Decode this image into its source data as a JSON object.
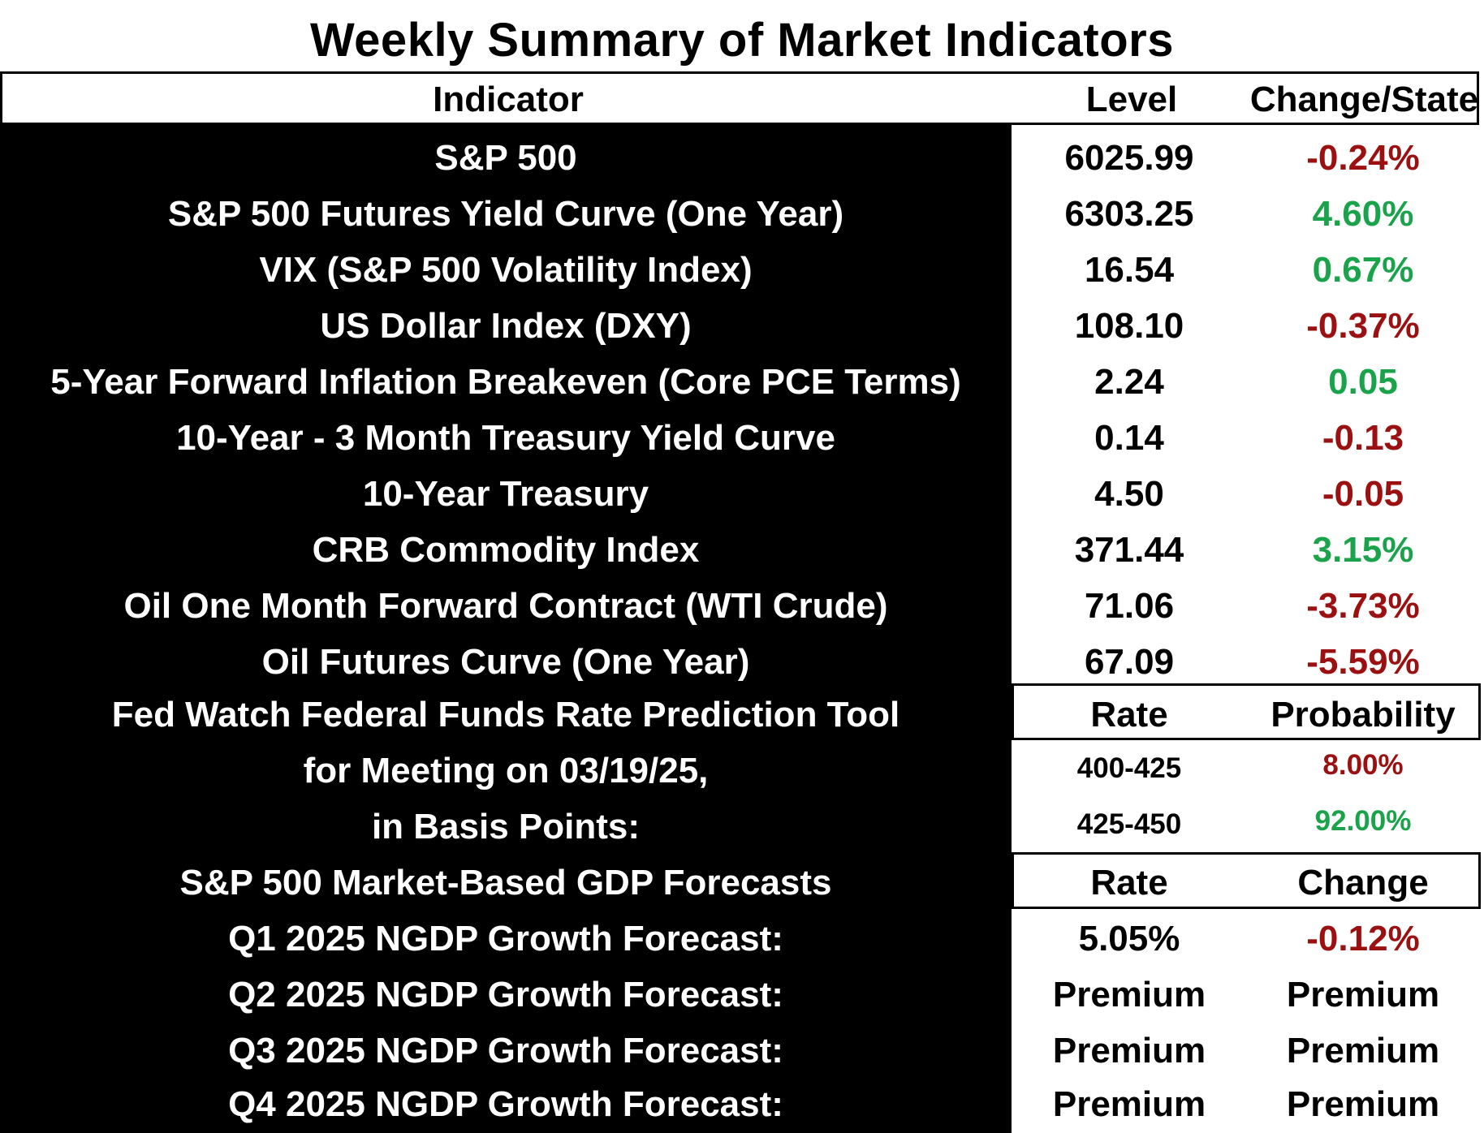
{
  "title": "Weekly Summary of Market Indicators",
  "header": {
    "indicator": "Indicator",
    "level": "Level",
    "change": "Change/State"
  },
  "rows": [
    {
      "indicator": "S&P 500",
      "level": "6025.99",
      "change": "-0.24%",
      "color": "#9b1111"
    },
    {
      "indicator": "S&P 500 Futures Yield Curve (One Year)",
      "level": "6303.25",
      "change": "4.60%",
      "color": "#1aa34a"
    },
    {
      "indicator": "VIX (S&P 500 Volatility Index)",
      "level": "16.54",
      "change": "0.67%",
      "color": "#1aa34a"
    },
    {
      "indicator": "US Dollar Index (DXY)",
      "level": "108.10",
      "change": "-0.37%",
      "color": "#9b1111"
    },
    {
      "indicator": "5-Year Forward Inflation Breakeven (Core PCE Terms)",
      "level": "2.24",
      "change": "0.05",
      "color": "#1aa34a"
    },
    {
      "indicator": "10-Year - 3 Month Treasury Yield Curve",
      "level": "0.14",
      "change": "-0.13",
      "color": "#9b1111"
    },
    {
      "indicator": "10-Year Treasury",
      "level": "4.50",
      "change": "-0.05",
      "color": "#9b1111"
    },
    {
      "indicator": "CRB Commodity Index",
      "level": "371.44",
      "change": "3.15%",
      "color": "#1aa34a"
    },
    {
      "indicator": "Oil One Month Forward Contract (WTI Crude)",
      "level": "71.06",
      "change": "-3.73%",
      "color": "#9b1111"
    },
    {
      "indicator": "Oil Futures Curve (One Year)",
      "level": "67.09",
      "change": "-5.59%",
      "color": "#9b1111"
    }
  ],
  "fedwatch": {
    "line1": "Fed Watch Federal Funds Rate Prediction Tool",
    "line2": "for Meeting on 03/19/25,",
    "line3": "in Basis Points:",
    "rate_header": "Rate",
    "prob_header": "Probability",
    "options": [
      {
        "rate": "400-425",
        "probability": "8.00%",
        "color": "#9b1111"
      },
      {
        "rate": "425-450",
        "probability": "92.00%",
        "color": "#1aa34a"
      }
    ]
  },
  "gdp": {
    "heading": "S&P 500 Market-Based GDP Forecasts",
    "rate_header": "Rate",
    "change_header": "Change",
    "rows": [
      {
        "label": "Q1 2025 NGDP Growth Forecast:",
        "rate": "5.05%",
        "change": "-0.12%",
        "color": "#9b1111"
      },
      {
        "label": "Q2 2025 NGDP Growth Forecast:",
        "rate": "Premium",
        "change": "Premium",
        "color": "#000000"
      },
      {
        "label": "Q3 2025 NGDP Growth Forecast:",
        "rate": "Premium",
        "change": "Premium",
        "color": "#000000"
      },
      {
        "label": "Q4 2025 NGDP Growth Forecast:",
        "rate": "Premium",
        "change": "Premium",
        "color": "#000000"
      }
    ]
  }
}
